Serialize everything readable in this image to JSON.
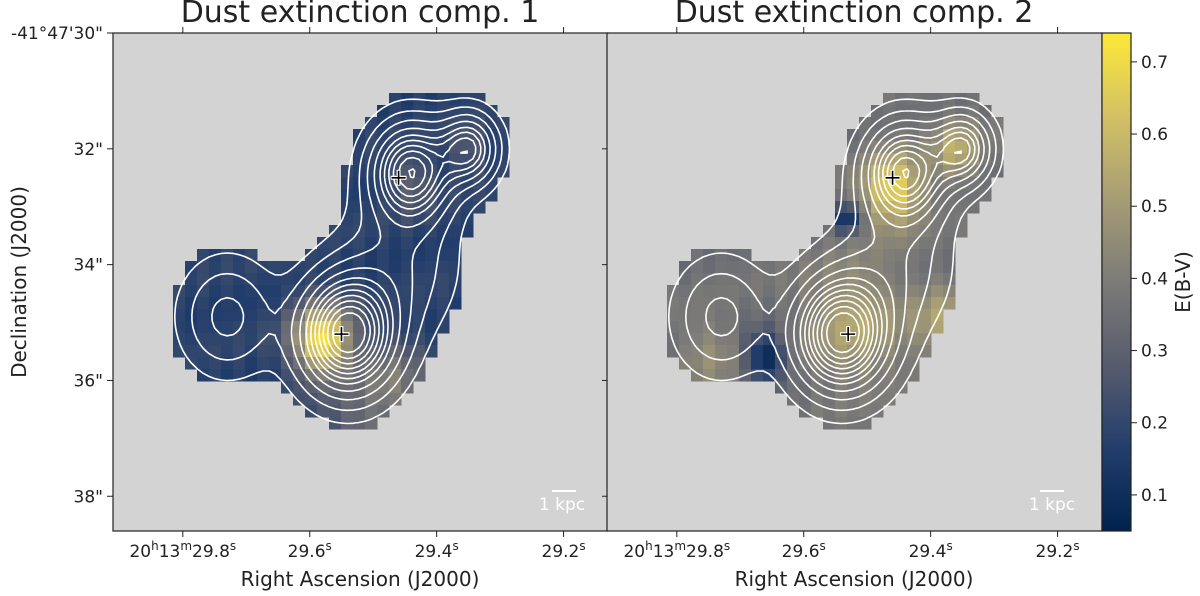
{
  "chart_data": [
    {
      "type": "heatmap",
      "title": "Dust extinction comp. 1",
      "xlabel": "Right Ascension (J2000)",
      "ylabel": "Declination (J2000)",
      "x_ticks": [
        {
          "value": 29.8,
          "label_parts": [
            "20",
            "h",
            "13",
            "m",
            "29.8",
            "s"
          ]
        },
        {
          "value": 29.6,
          "label_parts": [
            "29.6",
            "s"
          ]
        },
        {
          "value": 29.4,
          "label_parts": [
            "29.4",
            "s"
          ]
        },
        {
          "value": 29.2,
          "label_parts": [
            "29.2",
            "s"
          ]
        }
      ],
      "y_ticks": [
        {
          "value": 30,
          "label": "-41°47'30\""
        },
        {
          "value": 32,
          "label": "32\""
        },
        {
          "value": 34,
          "label": "34\""
        },
        {
          "value": 36,
          "label": "36\""
        },
        {
          "value": 38,
          "label": "38\""
        }
      ],
      "xlim": [
        29.91,
        29.13
      ],
      "ylim": [
        38.6,
        30.0
      ],
      "scale_bar": "1 kpc",
      "background": 0.18,
      "blobs": [
        {
          "ra": 29.58,
          "dec": 35.3,
          "amp": 0.55,
          "sigma": 0.45
        },
        {
          "ra": 29.47,
          "dec": 36.0,
          "amp": 0.2,
          "sigma": 0.5
        },
        {
          "ra": 29.44,
          "dec": 32.6,
          "amp": 0.12,
          "sigma": 0.35
        },
        {
          "ra": 29.35,
          "dec": 32.0,
          "amp": 0.1,
          "sigma": 0.3
        },
        {
          "ra": 29.52,
          "dec": 37.0,
          "amp": 0.15,
          "sigma": 0.6
        }
      ],
      "markers": [
        {
          "ra": 29.55,
          "dec": 35.2
        },
        {
          "ra": 29.46,
          "dec": 32.5
        }
      ]
    },
    {
      "type": "heatmap",
      "title": "Dust extinction comp. 2",
      "xlabel": "Right Ascension (J2000)",
      "ylabel": "",
      "x_ticks": [
        {
          "value": 29.8,
          "label_parts": [
            "20",
            "h",
            "13",
            "m",
            "29.8",
            "s"
          ]
        },
        {
          "value": 29.6,
          "label_parts": [
            "29.6",
            "s"
          ]
        },
        {
          "value": 29.4,
          "label_parts": [
            "29.4",
            "s"
          ]
        },
        {
          "value": 29.2,
          "label_parts": [
            "29.2",
            "s"
          ]
        }
      ],
      "xlim": [
        29.91,
        29.13
      ],
      "ylim": [
        38.6,
        30.0
      ],
      "scale_bar": "1 kpc",
      "background": 0.36,
      "blobs": [
        {
          "ra": 29.46,
          "dec": 32.7,
          "amp": 0.32,
          "sigma": 0.45
        },
        {
          "ra": 29.36,
          "dec": 32.0,
          "amp": 0.2,
          "sigma": 0.35
        },
        {
          "ra": 29.52,
          "dec": 35.0,
          "amp": 0.18,
          "sigma": 0.7
        },
        {
          "ra": 29.38,
          "dec": 35.0,
          "amp": 0.16,
          "sigma": 0.45
        },
        {
          "ra": 29.75,
          "dec": 35.5,
          "amp": 0.1,
          "sigma": 0.4
        },
        {
          "ra": 29.66,
          "dec": 35.6,
          "amp": -0.3,
          "sigma": 0.3
        },
        {
          "ra": 29.53,
          "dec": 33.2,
          "amp": -0.3,
          "sigma": 0.18
        }
      ],
      "markers": [
        {
          "ra": 29.53,
          "dec": 35.2
        },
        {
          "ra": 29.46,
          "dec": 32.5
        }
      ]
    }
  ],
  "colorbar": {
    "label": "E(B-V)",
    "vmin": 0.05,
    "vmax": 0.74,
    "ticks": [
      "0.1",
      "0.2",
      "0.3",
      "0.4",
      "0.5",
      "0.6",
      "0.7"
    ],
    "stops": [
      "#00224e",
      "#233e6c",
      "#575c6d",
      "#7c7b78",
      "#a69d75",
      "#d3c164",
      "#fee838"
    ],
    "nan_color": "#d3d3d3"
  },
  "contours": {
    "color": "#ffffff",
    "levels": [
      0.06,
      0.13,
      0.22,
      0.32,
      0.42,
      0.5,
      0.58,
      0.66,
      0.74,
      0.82,
      0.9
    ],
    "components": [
      {
        "ra": 29.54,
        "dec": 35.2,
        "amp": 1.0,
        "sigma": 0.65
      },
      {
        "ra": 29.44,
        "dec": 32.4,
        "amp": 0.8,
        "sigma": 0.55
      },
      {
        "ra": 29.35,
        "dec": 32.0,
        "amp": 0.6,
        "sigma": 0.4
      },
      {
        "ra": 29.73,
        "dec": 34.9,
        "amp": 0.25,
        "sigma": 0.65
      },
      {
        "ra": 29.46,
        "dec": 34.0,
        "amp": 0.2,
        "sigma": 0.8
      }
    ]
  }
}
